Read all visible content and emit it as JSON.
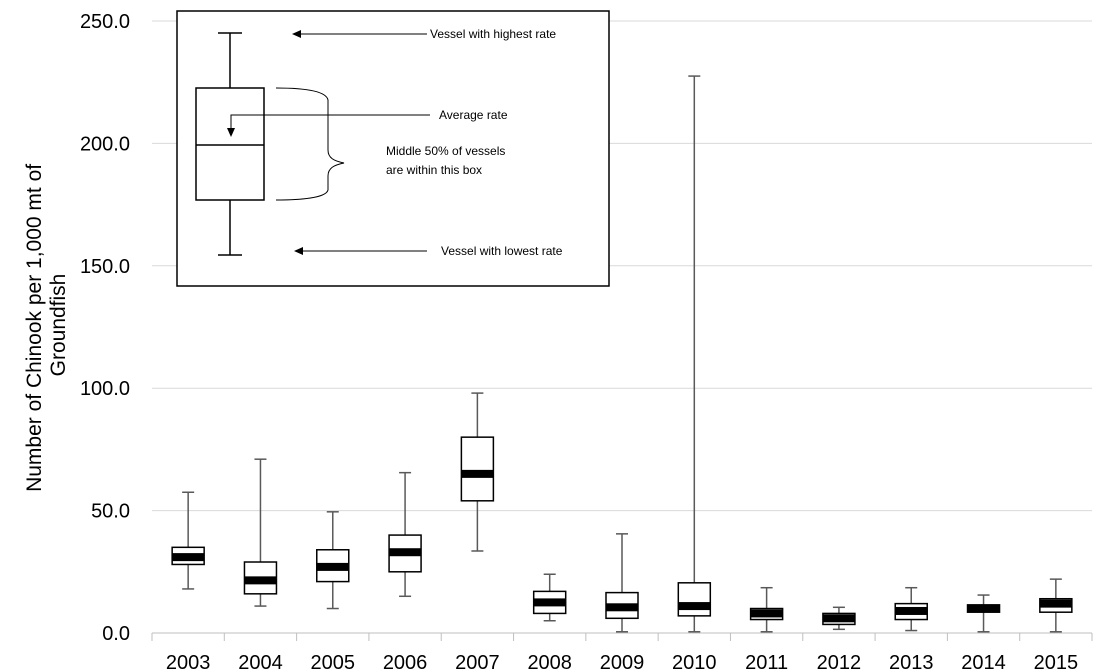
{
  "chart_data": {
    "type": "box",
    "ylabel_lines": [
      "Number of Chinook per 1,000 mt of",
      "Groundfish"
    ],
    "ylim": [
      0,
      250
    ],
    "yticks": [
      "0.0",
      "50.0",
      "100.0",
      "150.0",
      "200.0",
      "250.0"
    ],
    "grid": "horizontal",
    "categories": [
      "2003",
      "2004",
      "2005",
      "2006",
      "2007",
      "2008",
      "2009",
      "2010",
      "2011",
      "2012",
      "2013",
      "2014",
      "2015"
    ],
    "boxes": [
      {
        "year": "2003",
        "min": 18,
        "q1": 28,
        "avg": 31,
        "q3": 35,
        "max": 57.5
      },
      {
        "year": "2004",
        "min": 11,
        "q1": 16,
        "avg": 21.5,
        "q3": 29,
        "max": 71
      },
      {
        "year": "2005",
        "min": 10,
        "q1": 21,
        "avg": 27,
        "q3": 34,
        "max": 49.5
      },
      {
        "year": "2006",
        "min": 15,
        "q1": 25,
        "avg": 33,
        "q3": 40,
        "max": 65.5
      },
      {
        "year": "2007",
        "min": 33.5,
        "q1": 54,
        "avg": 65,
        "q3": 80,
        "max": 98
      },
      {
        "year": "2008",
        "min": 5,
        "q1": 8,
        "avg": 12.5,
        "q3": 17,
        "max": 24
      },
      {
        "year": "2009",
        "min": 0.5,
        "q1": 6,
        "avg": 10.5,
        "q3": 16.5,
        "max": 40.5
      },
      {
        "year": "2010",
        "min": 0.5,
        "q1": 7,
        "avg": 11,
        "q3": 20.5,
        "max": 227.5
      },
      {
        "year": "2011",
        "min": 0.5,
        "q1": 5.5,
        "avg": 8,
        "q3": 10,
        "max": 18.5
      },
      {
        "year": "2012",
        "min": 1.5,
        "q1": 3.5,
        "avg": 6,
        "q3": 8,
        "max": 10.5
      },
      {
        "year": "2013",
        "min": 1,
        "q1": 5.5,
        "avg": 9,
        "q3": 12,
        "max": 18.5
      },
      {
        "year": "2014",
        "min": 0.5,
        "q1": 8.5,
        "avg": 10,
        "q3": 11.5,
        "max": 15.5
      },
      {
        "year": "2015",
        "min": 0.5,
        "q1": 8.5,
        "avg": 12,
        "q3": 14,
        "max": 22
      }
    ],
    "legend": {
      "placement": "top-left",
      "highest": "Vessel with highest rate",
      "average": "Average rate",
      "middle_line1": "Middle 50% of vessels",
      "middle_line2": "are within this box",
      "lowest": "Vessel with lowest rate"
    }
  }
}
